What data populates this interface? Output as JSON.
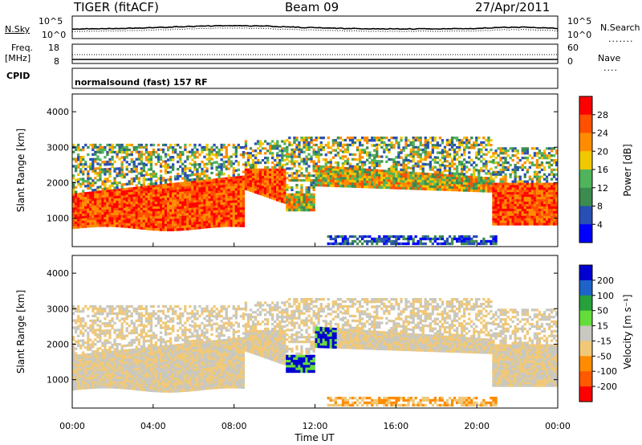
{
  "header": {
    "radar": "TIGER (fitACF)",
    "beam": "Beam 09",
    "date": "27/Apr/2011"
  },
  "top_panels": {
    "nsky_label": "N.Sky",
    "nsky_ticks": [
      "10^5",
      "10^0"
    ],
    "nsearch_label": "N.Search",
    "nsearch_ticks": [
      "10^5",
      "10^0"
    ],
    "freq_label": "Freq.",
    "freq_unit": "[MHz]",
    "freq_ticks": [
      "18",
      "8"
    ],
    "nave_label": "Nave",
    "nave_ticks": [
      "60",
      "0"
    ],
    "cpid_label": "CPID",
    "cpid_text": "normalsound (fast) 157 RF"
  },
  "colors": {
    "power_scale": [
      "#0000ff",
      "#2850b4",
      "#3c8c50",
      "#50b45a",
      "#f0c800",
      "#ff8c00",
      "#ff5000",
      "#ff0000"
    ],
    "velocity_scale": [
      "#0000d0",
      "#1e64c8",
      "#28a03c",
      "#64dc3c",
      "#c8c8c0",
      "#f0c878",
      "#ff8c00",
      "#ff5a00",
      "#ff0000"
    ]
  },
  "chart_data": [
    {
      "type": "heatmap",
      "name": "power",
      "ylabel": "Slant Range [km]",
      "yticks": [
        "4000",
        "3000",
        "2000",
        "1000"
      ],
      "ylim": [
        200,
        4500
      ],
      "colorbar_label": "Power [dB]",
      "colorbar_ticks": [
        "28",
        "24",
        "20",
        "16",
        "12",
        "8",
        "4"
      ],
      "clim": [
        0,
        32
      ]
    },
    {
      "type": "heatmap",
      "name": "velocity",
      "ylabel": "Slant Range [km]",
      "yticks": [
        "4000",
        "3000",
        "2000",
        "1000"
      ],
      "ylim": [
        200,
        4500
      ],
      "colorbar_label": "Velocity [m s⁻¹]",
      "colorbar_ticks": [
        "200",
        "100",
        "50",
        "15",
        "-15",
        "-50",
        "-100",
        "-200"
      ],
      "clim": [
        -250,
        250
      ]
    }
  ],
  "xaxis": {
    "xlabel": "Time UT",
    "ticks": [
      "00:00",
      "04:00",
      "08:00",
      "12:00",
      "16:00",
      "20:00",
      "00:00"
    ]
  }
}
